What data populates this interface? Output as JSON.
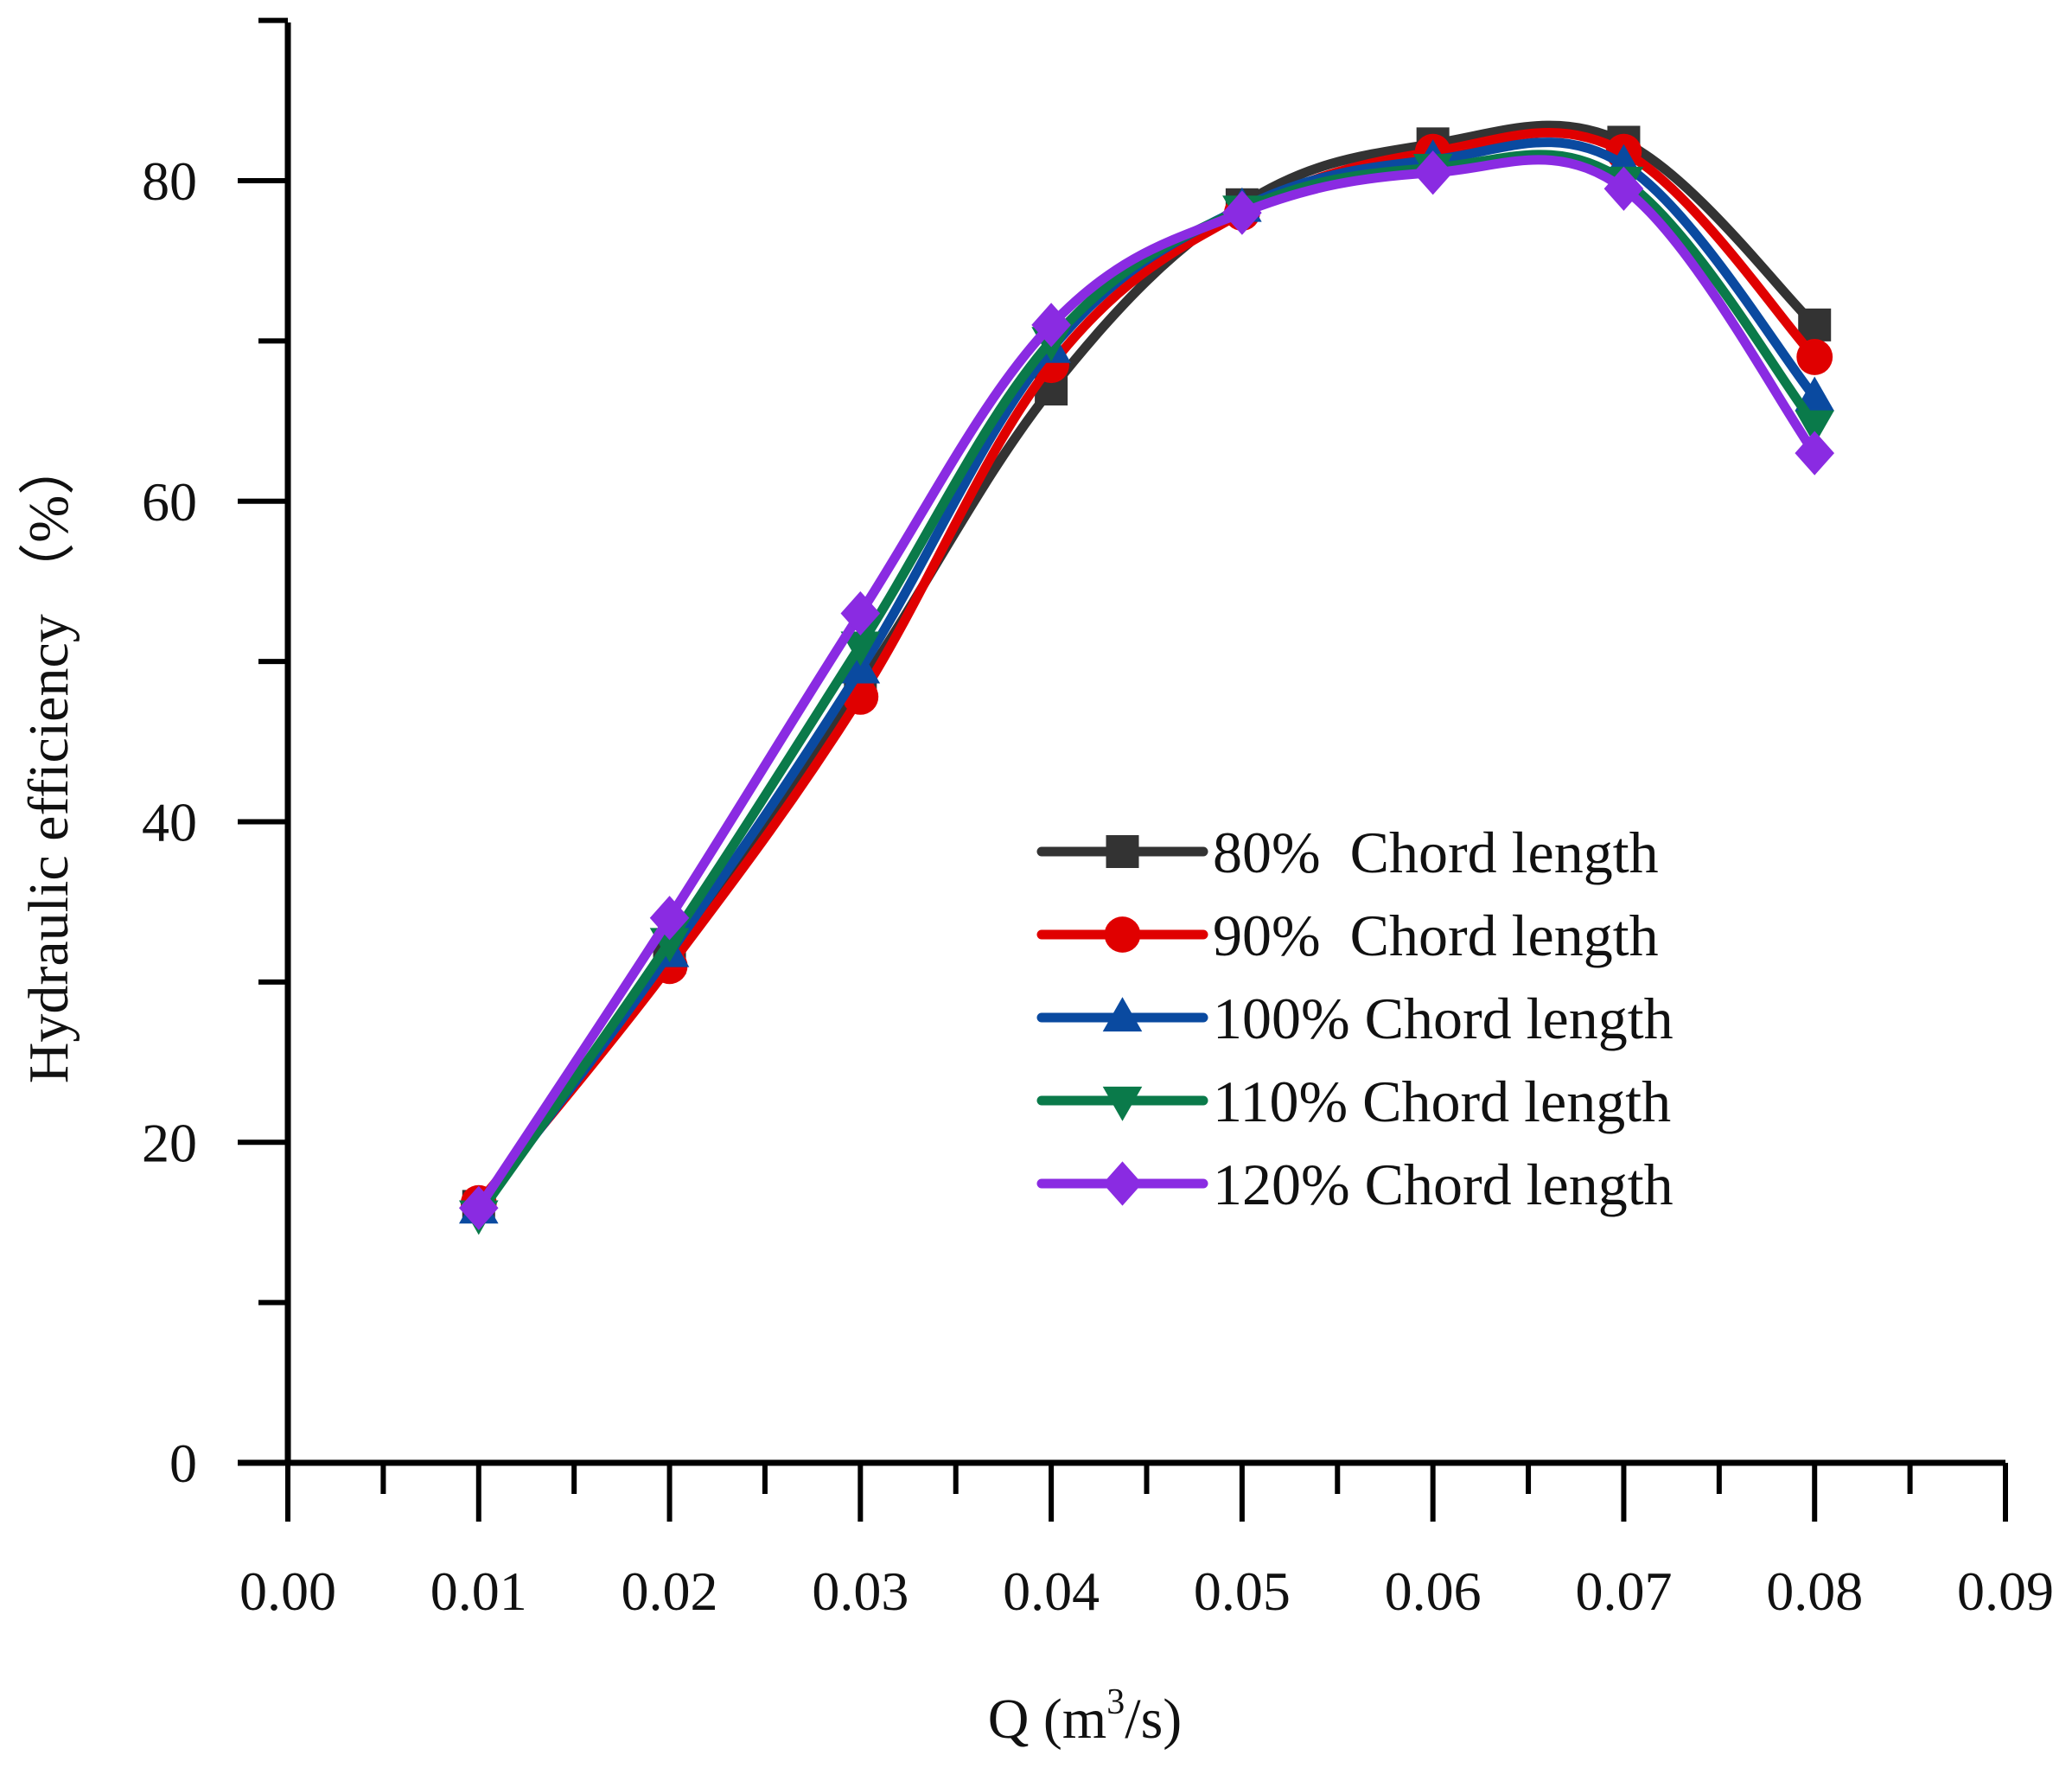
{
  "chart_data": {
    "type": "line",
    "title": "",
    "xlabel": "Q (m3/s)",
    "xlabel_parts": {
      "prefix": "Q (m",
      "superscript": "3",
      "suffix": "/s)"
    },
    "ylabel": "Hydraulic efficiency （%）",
    "xlim": [
      0,
      0.09
    ],
    "ylim": [
      0,
      90
    ],
    "x_ticks": [
      "0.00",
      "0.01",
      "0.02",
      "0.03",
      "0.04",
      "0.05",
      "0.06",
      "0.07",
      "0.08",
      "0.09"
    ],
    "y_ticks": [
      "0",
      "20",
      "40",
      "60",
      "80"
    ],
    "grid": false,
    "legend_position": "center-right",
    "x": [
      0.01,
      0.02,
      0.03,
      0.04,
      0.05,
      0.06,
      0.07,
      0.08
    ],
    "series": [
      {
        "name": "80%  Chord length",
        "color": "#333333",
        "marker": "square",
        "values": [
          16.0,
          31.5,
          48.5,
          67.0,
          78.5,
          82.3,
          82.4,
          71.0
        ]
      },
      {
        "name": "90%  Chord length",
        "color": "#e00000",
        "marker": "circle",
        "values": [
          16.2,
          31.0,
          47.8,
          68.5,
          78.0,
          81.8,
          81.8,
          69.0
        ]
      },
      {
        "name": "100% Chord length",
        "color": "#0a4aa0",
        "marker": "triangle-up",
        "values": [
          15.8,
          31.8,
          49.5,
          69.5,
          78.3,
          81.3,
          81.0,
          66.5
        ]
      },
      {
        "name": "110% Chord length",
        "color": "#0a7a4a",
        "marker": "triangle-down",
        "values": [
          15.5,
          32.5,
          51.0,
          70.0,
          78.2,
          80.8,
          80.0,
          64.8
        ]
      },
      {
        "name": "120% Chord length",
        "color": "#8a2be2",
        "marker": "diamond",
        "values": [
          15.9,
          34.0,
          53.0,
          71.0,
          78.0,
          80.5,
          79.5,
          63.0
        ]
      }
    ]
  }
}
